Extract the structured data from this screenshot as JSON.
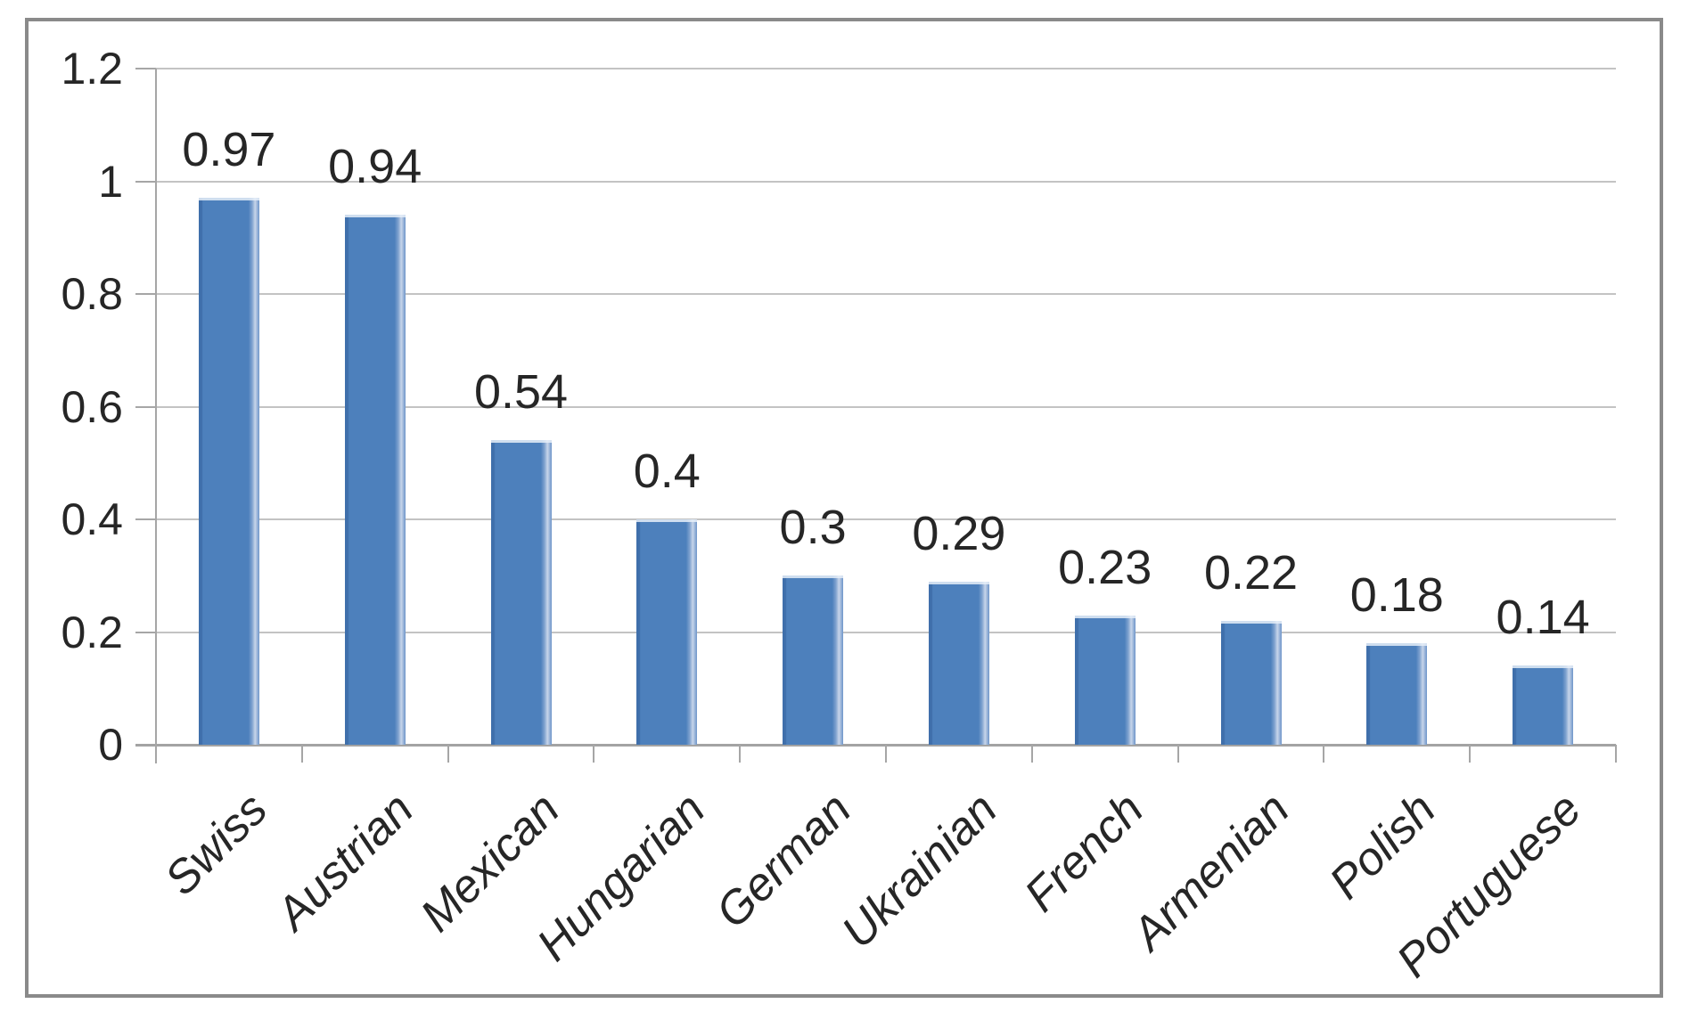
{
  "chart_data": {
    "type": "bar",
    "title": "",
    "xlabel": "",
    "ylabel": "",
    "categories": [
      "Swiss",
      "Austrian",
      "Mexican",
      "Hungarian",
      "German",
      "Ukrainian",
      "French",
      "Armenian",
      "Polish",
      "Portuguese"
    ],
    "values": [
      0.97,
      0.94,
      0.54,
      0.4,
      0.3,
      0.29,
      0.23,
      0.22,
      0.18,
      0.14
    ],
    "data_labels": [
      "0.97",
      "0.94",
      "0.54",
      "0.4",
      "0.3",
      "0.29",
      "0.23",
      "0.22",
      "0.18",
      "0.14"
    ],
    "ylim": [
      0,
      1.2
    ],
    "y_ticks": [
      {
        "value": 1.2,
        "label": "1.2"
      },
      {
        "value": 1.0,
        "label": "1"
      },
      {
        "value": 0.8,
        "label": "0.8"
      },
      {
        "value": 0.6,
        "label": "0.6"
      },
      {
        "value": 0.4,
        "label": "0.4"
      },
      {
        "value": 0.2,
        "label": "0.2"
      },
      {
        "value": 0.0,
        "label": "0"
      }
    ],
    "grid": "horizontal",
    "legend": "none",
    "label_rotation_deg": -45,
    "colors": {
      "bar_fill": "#4d80bc",
      "bar_edge_dark": "#3f6fab",
      "bar_edge_light": "#c7d5ea",
      "gridline": "#c3c3c3",
      "axis": "#a6a6a6",
      "text": "#262626",
      "frame_border": "#8a8a8a",
      "background": "#ffffff"
    }
  }
}
